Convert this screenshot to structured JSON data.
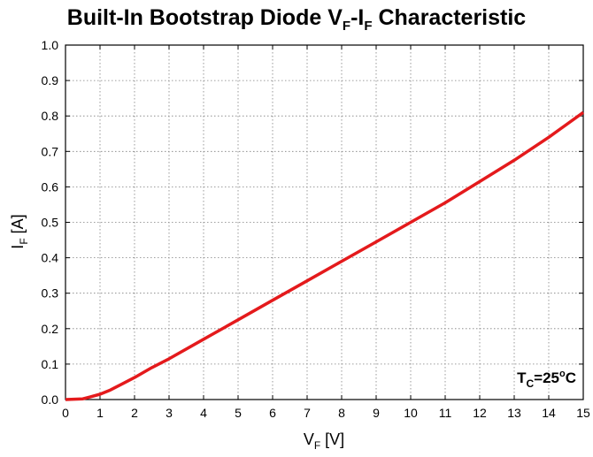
{
  "chart_data": {
    "type": "line",
    "title_main": "Built-In Bootstrap Diode V",
    "title_sub1": "F",
    "title_mid": "-I",
    "title_sub2": "F",
    "title_end": " Characteristic",
    "xlabel_main": "V",
    "xlabel_sub": "F",
    "xlabel_unit": " [V]",
    "ylabel_main": "I",
    "ylabel_sub": "F",
    "ylabel_unit": " [A]",
    "xlim": [
      0,
      15
    ],
    "ylim": [
      0,
      1.0
    ],
    "x_ticks": [
      "0",
      "1",
      "2",
      "3",
      "4",
      "5",
      "6",
      "7",
      "8",
      "9",
      "10",
      "11",
      "12",
      "13",
      "14",
      "15"
    ],
    "y_ticks": [
      "0.0",
      "0.1",
      "0.2",
      "0.3",
      "0.4",
      "0.5",
      "0.6",
      "0.7",
      "0.8",
      "0.9",
      "1.0"
    ],
    "grid": true,
    "line_color": "#e41a1c",
    "annotation": {
      "main": "T",
      "sub": "C",
      "value": "=25",
      "sup": "o",
      "unit": "C"
    },
    "series": [
      {
        "x": [
          0,
          0.5,
          0.7,
          1.0,
          1.3,
          1.6,
          2.0,
          2.5,
          3.0,
          4.0,
          5.0,
          6.0,
          7.0,
          8.0,
          9.0,
          10.0,
          11.0,
          12.0,
          13.0,
          14.0,
          15.0
        ],
        "y": [
          0,
          0.002,
          0.007,
          0.015,
          0.027,
          0.042,
          0.062,
          0.09,
          0.115,
          0.17,
          0.225,
          0.28,
          0.335,
          0.39,
          0.445,
          0.5,
          0.555,
          0.615,
          0.675,
          0.74,
          0.81
        ]
      }
    ]
  }
}
